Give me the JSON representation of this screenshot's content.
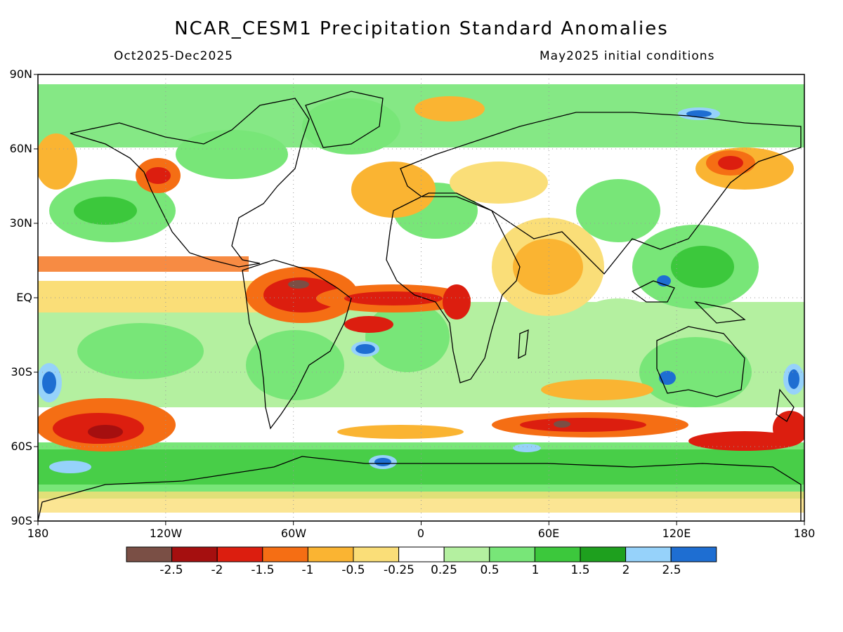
{
  "header": {
    "title": "NCAR_CESM1 Precipitation Standard Anomalies",
    "season": "Oct2025-Dec2025",
    "init": "May2025 initial conditions"
  },
  "map": {
    "lat_labels": [
      "90N",
      "60N",
      "30N",
      "EQ",
      "30S",
      "60S",
      "90S"
    ],
    "lon_labels": [
      "180",
      "120W",
      "60W",
      "0",
      "60E",
      "120E",
      "180"
    ],
    "lon_range": [
      -180,
      180
    ],
    "lat_range": [
      -90,
      90
    ],
    "gridlines": "dotted"
  },
  "colorbar": {
    "labels": [
      "-2.5",
      "-2",
      "-1.5",
      "-1",
      "-0.5",
      "-0.25",
      "0.25",
      "0.5",
      "1",
      "1.5",
      "2",
      "2.5"
    ],
    "colors": [
      "#7a4f45",
      "#a50f0f",
      "#dc1e0f",
      "#f56e14",
      "#fab432",
      "#fade78",
      "#ffffff",
      "#b4f0a0",
      "#78e678",
      "#3cc83c",
      "#1ea01e",
      "#96d2fa",
      "#1e6ed2"
    ]
  }
}
